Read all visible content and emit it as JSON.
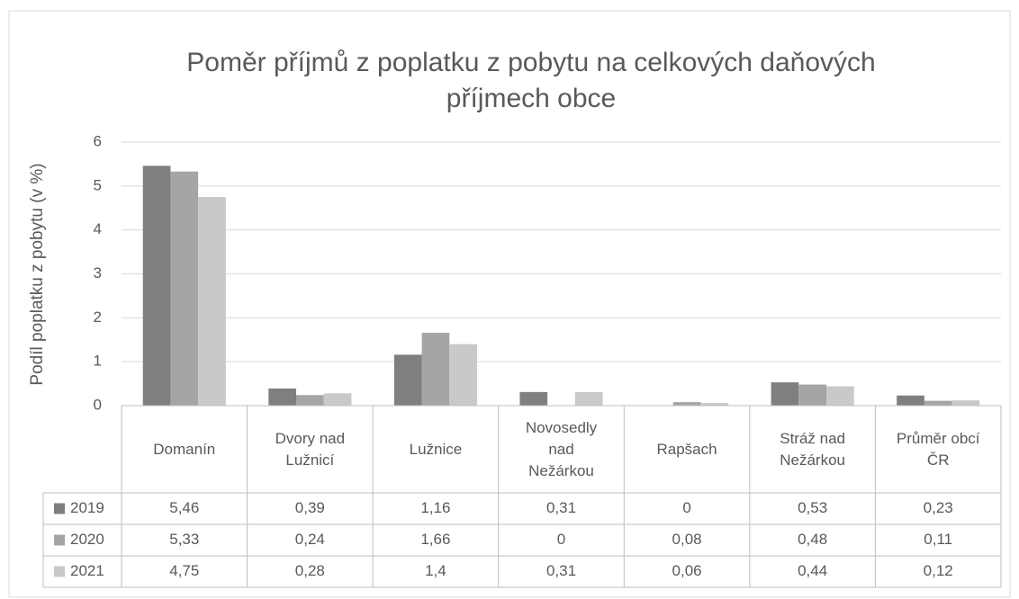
{
  "chart_data": {
    "type": "bar",
    "title": "Poměr příjmů z poplatku z pobytu na celkových daňových příjmech obce",
    "y_label": "Podíl poplatku z pobytu (v %)",
    "categories": [
      "Domanín",
      "Dvory nad Lužnicí",
      "Lužnice",
      "Novosedly nad Nežárkou",
      "Rapšach",
      "Stráž nad Nežárkou",
      "Průměr obcí ČR"
    ],
    "series": [
      {
        "name": "2019",
        "color": "#7f7f7f",
        "values": [
          5.46,
          0.39,
          1.16,
          0.31,
          0,
          0.53,
          0.23
        ],
        "value_labels": [
          "5,46",
          "0,39",
          "1,16",
          "0,31",
          "0",
          "0,53",
          "0,23"
        ]
      },
      {
        "name": "2020",
        "color": "#a5a5a5",
        "values": [
          5.33,
          0.24,
          1.66,
          0,
          0.08,
          0.48,
          0.11
        ],
        "value_labels": [
          "5,33",
          "0,24",
          "1,66",
          "0",
          "0,08",
          "0,48",
          "0,11"
        ]
      },
      {
        "name": "2021",
        "color": "#c9c9c9",
        "values": [
          4.75,
          0.28,
          1.4,
          0.31,
          0.06,
          0.44,
          0.12
        ],
        "value_labels": [
          "4,75",
          "0,28",
          "1,4",
          "0,31",
          "0,06",
          "0,44",
          "0,12"
        ]
      }
    ],
    "ylim": [
      0,
      6
    ],
    "yticks": [
      0,
      1,
      2,
      3,
      4,
      5,
      6
    ],
    "grid": true
  }
}
